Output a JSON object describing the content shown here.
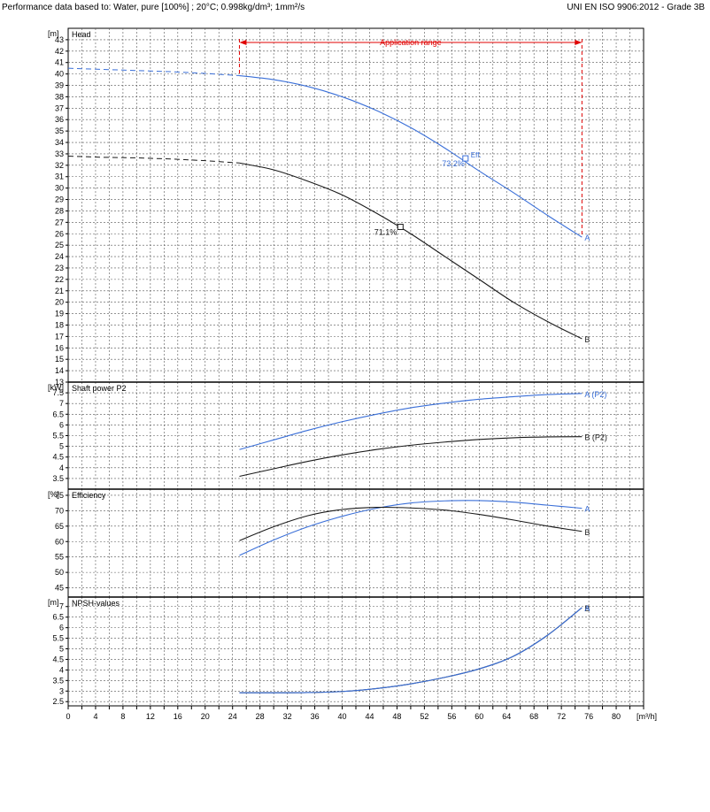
{
  "header": {
    "left": "Performance data based to:  Water, pure [100%] ; 20°C; 0.998kg/dm³; 1mm²/s",
    "right": "UNI EN ISO 9906:2012 - Grade 3B"
  },
  "colors": {
    "A": "#3a6fd8",
    "B": "#1a1a1a",
    "range": "#e00000",
    "grid": "#555555"
  },
  "chart_data": [
    {
      "type": "line",
      "panel": "head",
      "title": "Head",
      "unit": "[m]",
      "ylim": [
        13,
        44
      ],
      "yticks": [
        13,
        14,
        15,
        16,
        17,
        18,
        19,
        20,
        21,
        22,
        23,
        24,
        25,
        26,
        27,
        28,
        29,
        30,
        31,
        32,
        33,
        34,
        35,
        36,
        37,
        38,
        39,
        40,
        41,
        42,
        43
      ],
      "application_range": {
        "label": "Application range",
        "from": 25,
        "to": 75
      },
      "series": [
        {
          "name": "A",
          "color": "A",
          "dashed_x": [
            0,
            5,
            10,
            15,
            20,
            25
          ],
          "dashed_y": [
            40.5,
            40.4,
            40.3,
            40.2,
            40.05,
            39.85
          ],
          "x": [
            25,
            30,
            35,
            40,
            45,
            50,
            55,
            60,
            65,
            70,
            75
          ],
          "y": [
            39.85,
            39.5,
            38.9,
            38.0,
            36.8,
            35.3,
            33.5,
            31.5,
            29.6,
            27.6,
            25.7
          ],
          "end_label": "A"
        },
        {
          "name": "B",
          "color": "B",
          "dashed_x": [
            0,
            5,
            10,
            15,
            20,
            25
          ],
          "dashed_y": [
            32.8,
            32.7,
            32.65,
            32.55,
            32.4,
            32.2
          ],
          "x": [
            25,
            30,
            35,
            40,
            45,
            50,
            55,
            60,
            65,
            70,
            75
          ],
          "y": [
            32.2,
            31.6,
            30.6,
            29.4,
            27.8,
            26.0,
            24.0,
            22.0,
            20.0,
            18.3,
            16.8
          ],
          "end_label": "B"
        }
      ],
      "annotations": [
        {
          "text": "Eff.",
          "x": 58,
          "y": 32.6,
          "marker": true,
          "color": "A"
        },
        {
          "text": "73.2%",
          "x": 58,
          "y": 32.6,
          "color": "A"
        },
        {
          "text": "71.1%",
          "x": 48.5,
          "y": 26.6,
          "marker": true,
          "color": "B"
        }
      ]
    },
    {
      "type": "line",
      "panel": "power",
      "title": "Shaft power P2",
      "unit": "[kW]",
      "ylim": [
        3,
        8
      ],
      "yticks": [
        3.5,
        4,
        4.5,
        5,
        5.5,
        6,
        6.5,
        7,
        7.5
      ],
      "series": [
        {
          "name": "A (P2)",
          "color": "A",
          "x": [
            25,
            30,
            35,
            40,
            45,
            50,
            55,
            60,
            65,
            70,
            75
          ],
          "y": [
            4.85,
            5.3,
            5.75,
            6.15,
            6.5,
            6.8,
            7.02,
            7.2,
            7.32,
            7.42,
            7.47
          ],
          "end_label": "A (P2)"
        },
        {
          "name": "B (P2)",
          "color": "B",
          "x": [
            25,
            30,
            35,
            40,
            45,
            50,
            55,
            60,
            65,
            70,
            75
          ],
          "y": [
            3.6,
            3.95,
            4.3,
            4.6,
            4.85,
            5.05,
            5.2,
            5.32,
            5.4,
            5.44,
            5.45
          ],
          "end_label": "B (P2)"
        }
      ]
    },
    {
      "type": "line",
      "panel": "efficiency",
      "title": "Efficiency",
      "unit": "[%]",
      "ylim": [
        42,
        77
      ],
      "yticks": [
        45,
        50,
        55,
        60,
        65,
        70,
        75
      ],
      "series": [
        {
          "name": "A",
          "color": "A",
          "x": [
            25,
            30,
            35,
            40,
            45,
            50,
            55,
            60,
            65,
            70,
            75
          ],
          "y": [
            55.5,
            60.5,
            64.8,
            68.2,
            70.8,
            72.5,
            73.2,
            73.3,
            72.8,
            71.8,
            70.8
          ],
          "end_label": "A"
        },
        {
          "name": "B",
          "color": "B",
          "x": [
            25,
            30,
            35,
            40,
            45,
            50,
            55,
            60,
            65,
            70,
            75
          ],
          "y": [
            60.3,
            64.8,
            68.4,
            70.4,
            71.1,
            70.9,
            70.2,
            68.8,
            67.0,
            65.0,
            63.3
          ],
          "end_label": "B"
        }
      ]
    },
    {
      "type": "line",
      "panel": "npsh",
      "title": "NPSH-values",
      "unit": "[m]",
      "ylim": [
        2.3,
        7.45
      ],
      "yticks": [
        2.5,
        3,
        3.5,
        4,
        4.5,
        5,
        5.5,
        6,
        6.5,
        7
      ],
      "series": [
        {
          "name": "B",
          "color": "B",
          "x": [
            25,
            30,
            35,
            40,
            45,
            50,
            55,
            60,
            65,
            70,
            75
          ],
          "y": [
            2.92,
            2.92,
            2.93,
            2.98,
            3.12,
            3.34,
            3.65,
            4.05,
            4.65,
            5.65,
            6.95
          ],
          "end_label": "B"
        },
        {
          "name": "A",
          "color": "A",
          "x": [
            25,
            30,
            35,
            40,
            45,
            50,
            55,
            60,
            65,
            70,
            75
          ],
          "y": [
            2.92,
            2.92,
            2.93,
            2.98,
            3.12,
            3.34,
            3.65,
            4.05,
            4.65,
            5.65,
            6.95
          ],
          "end_label": "A"
        }
      ]
    }
  ],
  "x_axis": {
    "unit": "[m³/h]",
    "xlim": [
      0,
      84
    ],
    "ticks": [
      0,
      4,
      8,
      12,
      16,
      20,
      24,
      28,
      32,
      36,
      40,
      44,
      48,
      52,
      56,
      60,
      64,
      68,
      72,
      76,
      80
    ]
  }
}
